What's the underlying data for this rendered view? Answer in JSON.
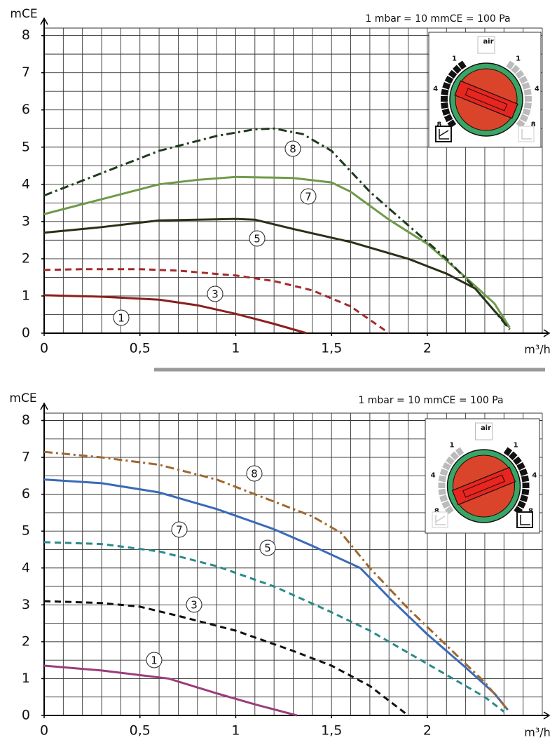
{
  "chart_data": [
    {
      "type": "line",
      "note": "1 mbar = 10 mmCE = 100 Pa",
      "y_label": "mCE",
      "x_label": "m³/h",
      "xlim": [
        0,
        2.6
      ],
      "ylim": [
        0,
        8.2
      ],
      "xticks": [
        0,
        {
          "value": 0.5,
          "label": "0,5"
        },
        1,
        {
          "value": 1.5,
          "label": "1,5"
        },
        2
      ],
      "yticks": [
        0,
        1,
        2,
        3,
        4,
        5,
        6,
        7,
        8
      ],
      "grid": true,
      "dial": {
        "labels": [
          "1",
          "4",
          "8"
        ],
        "badge": "air",
        "active": "left"
      },
      "series": [
        {
          "name": "1",
          "color": "#8b1f1f",
          "dash": "solid",
          "x": [
            0,
            0.3,
            0.6,
            0.8,
            1.0,
            1.2,
            1.37
          ],
          "values": [
            1.02,
            0.98,
            0.9,
            0.75,
            0.52,
            0.25,
            0
          ]
        },
        {
          "name": "3",
          "color": "#a52a2a",
          "dash": "dash",
          "x": [
            0,
            0.2,
            0.5,
            0.7,
            1.0,
            1.2,
            1.4,
            1.6,
            1.8
          ],
          "values": [
            1.7,
            1.72,
            1.72,
            1.68,
            1.55,
            1.4,
            1.15,
            0.72,
            0
          ]
        },
        {
          "name": "5",
          "color": "#2b2f16",
          "dash": "solid",
          "x": [
            0,
            0.3,
            0.6,
            0.8,
            1.0,
            1.1,
            1.3,
            1.6,
            1.9,
            2.1,
            2.25,
            2.35,
            2.43
          ],
          "values": [
            2.7,
            2.85,
            3.03,
            3.05,
            3.07,
            3.05,
            2.8,
            2.45,
            2.0,
            1.6,
            1.2,
            0.6,
            0.15
          ]
        },
        {
          "name": "7",
          "color": "#6f9a4a",
          "dash": "solid",
          "x": [
            0,
            0.3,
            0.6,
            0.8,
            1.0,
            1.3,
            1.5,
            1.6,
            1.8,
            2.0,
            2.2,
            2.35,
            2.43
          ],
          "values": [
            3.2,
            3.6,
            4.0,
            4.12,
            4.2,
            4.17,
            4.05,
            3.8,
            3.05,
            2.4,
            1.5,
            0.8,
            0.15
          ]
        },
        {
          "name": "8",
          "color": "#1f3a1f",
          "dash": "dashdot",
          "x": [
            0,
            0.3,
            0.6,
            0.9,
            1.1,
            1.2,
            1.35,
            1.5,
            1.7,
            1.9,
            2.1,
            2.25,
            2.35,
            2.43
          ],
          "values": [
            3.7,
            4.3,
            4.9,
            5.3,
            5.48,
            5.5,
            5.35,
            4.9,
            3.8,
            2.9,
            2.0,
            1.2,
            0.6,
            0.1
          ]
        }
      ]
    },
    {
      "type": "line",
      "note": "1 mbar = 10 mmCE = 100 Pa",
      "y_label": "mCE",
      "x_label": "m³/h",
      "xlim": [
        0,
        2.6
      ],
      "ylim": [
        0,
        8.2
      ],
      "xticks": [
        0,
        {
          "value": 0.5,
          "label": "0,5"
        },
        1,
        {
          "value": 1.5,
          "label": "1,5"
        },
        2
      ],
      "yticks": [
        0,
        1,
        2,
        3,
        4,
        5,
        6,
        7,
        8
      ],
      "grid": true,
      "dial": {
        "labels": [
          "1",
          "4",
          "8"
        ],
        "badge": "air",
        "active": "right"
      },
      "series": [
        {
          "name": "1",
          "color": "#9b3d7b",
          "dash": "solid",
          "x": [
            0,
            0.3,
            0.65,
            0.9,
            1.1,
            1.32
          ],
          "values": [
            1.35,
            1.22,
            1.0,
            0.6,
            0.3,
            0
          ]
        },
        {
          "name": "3",
          "color": "#111111",
          "dash": "dash",
          "x": [
            0,
            0.3,
            0.5,
            0.7,
            1.0,
            1.3,
            1.5,
            1.7,
            1.9
          ],
          "values": [
            3.1,
            3.05,
            2.95,
            2.7,
            2.3,
            1.75,
            1.35,
            0.8,
            0
          ]
        },
        {
          "name": "5",
          "color": "#2a8a8a",
          "dash": "dash",
          "x": [
            0,
            0.3,
            0.6,
            0.9,
            1.2,
            1.5,
            1.7,
            1.9,
            2.1,
            2.3,
            2.4
          ],
          "values": [
            4.7,
            4.65,
            4.45,
            4.05,
            3.5,
            2.8,
            2.3,
            1.7,
            1.1,
            0.5,
            0.1
          ]
        },
        {
          "name": "7",
          "color": "#3a6ab8",
          "dash": "solid",
          "x": [
            0,
            0.3,
            0.6,
            0.9,
            1.2,
            1.4,
            1.65,
            1.8,
            2.0,
            2.2,
            2.35,
            2.42
          ],
          "values": [
            6.4,
            6.3,
            6.05,
            5.6,
            5.05,
            4.6,
            4.0,
            3.2,
            2.2,
            1.3,
            0.6,
            0.15
          ]
        },
        {
          "name": "8",
          "color": "#a0672e",
          "dash": "dashdot",
          "x": [
            0,
            0.3,
            0.6,
            0.9,
            1.2,
            1.4,
            1.55,
            1.7,
            1.9,
            2.1,
            2.3,
            2.42
          ],
          "values": [
            7.15,
            7.0,
            6.8,
            6.4,
            5.8,
            5.4,
            4.95,
            4.0,
            2.9,
            1.9,
            0.9,
            0.15
          ]
        }
      ]
    }
  ]
}
